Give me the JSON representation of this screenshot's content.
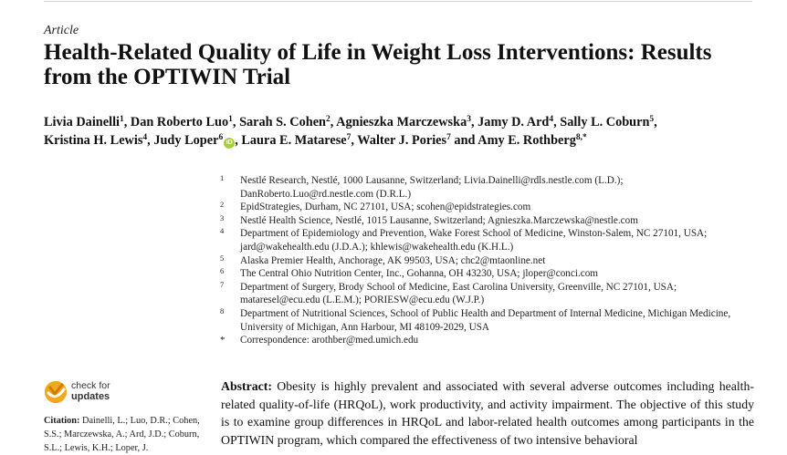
{
  "article_type": "Article",
  "title": "Health-Related Quality of Life in Weight Loss Interventions: Results from the OPTIWIN Trial",
  "authors": [
    {
      "name": "Livia Dainelli",
      "sup": "1",
      "sep": ", "
    },
    {
      "name": "Dan Roberto Luo",
      "sup": "1",
      "sep": ", "
    },
    {
      "name": "Sarah S. Cohen",
      "sup": "2",
      "sep": ", "
    },
    {
      "name": "Agnieszka Marczewska",
      "sup": "3",
      "sep": ", "
    },
    {
      "name": "Jamy D. Ard",
      "sup": "4",
      "sep": ", "
    },
    {
      "name": "Sally L. Coburn",
      "sup": "5",
      "sep": ","
    },
    {
      "name": "Kristina H. Lewis",
      "sup": "4",
      "sep": ", "
    },
    {
      "name": "Judy Loper",
      "sup": "6",
      "sep": ", "
    },
    {
      "name": "Laura E. Matarese",
      "sup": "7",
      "sep": ", "
    },
    {
      "name": "Walter J. Pories",
      "sup": "7",
      "sep": " and "
    },
    {
      "name": "Amy E. Rothberg",
      "sup": "8,*",
      "sep": ""
    }
  ],
  "affiliations": [
    {
      "num": "1",
      "text": "Nestlé Research, Nestlé, 1000 Lausanne, Switzerland; Livia.Dainelli@rdls.nestle.com (L.D.); DanRoberto.Luo@rd.nestle.com (D.R.L.)"
    },
    {
      "num": "2",
      "text": "EpidStrategies, Durham, NC 27101, USA; scohen@epidstrategies.com"
    },
    {
      "num": "3",
      "text": "Nestlé Health Science, Nestlé, 1015 Lausanne, Switzerland; Agnieszka.Marczewska@nestle.com"
    },
    {
      "num": "4",
      "text": "Department of Epidemiology and Prevention, Wake Forest School of Medicine, Winston-Salem, NC 27101, USA; jard@wakehealth.edu (J.D.A.); khlewis@wakehealth.edu (K.H.L.)"
    },
    {
      "num": "5",
      "text": "Alaska Premier Health, Anchorage, AK 99503, USA; chc2@mtaonline.net"
    },
    {
      "num": "6",
      "text": "The Central Ohio Nutrition Center, Inc., Gohanna, OH 43230, USA; jloper@conci.com"
    },
    {
      "num": "7",
      "text": "Department of Surgery, Brody School of Medicine, East Carolina University, Greenville, NC 27101, USA; mataresel@ecu.edu (L.E.M.); PORIESW@ecu.edu (W.J.P.)"
    },
    {
      "num": "8",
      "text": "Department of Nutritional Sciences, School of Public Health and Department of Internal Medicine, Michigan Medicine, University of Michigan, Ann Harbour, MI 48109-2029, USA"
    },
    {
      "num": "*",
      "text": "Correspondence: arothber@med.umich.edu"
    }
  ],
  "check_for_updates": {
    "line1": "check for",
    "line2": "updates"
  },
  "citation": {
    "label": "Citation:",
    "text": "Dainelli, L.; Luo, D.R.; Cohen, S.S.; Marczewska, A.; Ard, J.D.; Coburn, S.L.; Lewis, K.H.; Loper, J."
  },
  "abstract": {
    "label": "Abstract:",
    "text": "Obesity is highly prevalent and associated with several adverse outcomes including health-related quality-of-life (HRQoL), work productivity, and activity impairment. The objective of this study is to examine group differences in HRQoL and labor-related health outcomes among participants in the OPTIWIN program, which compared the effectiveness of two intensive behavioral"
  },
  "colors": {
    "orcid": "#a6ce39",
    "check_badge": "#f2a81e"
  },
  "icons": {
    "orcid": "orcid-icon",
    "check_for_updates": "check-for-updates-icon"
  }
}
